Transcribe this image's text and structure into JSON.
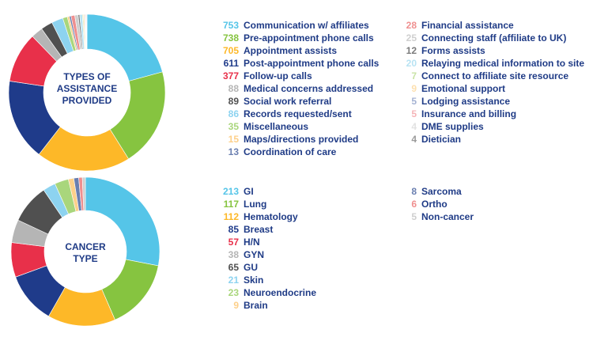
{
  "chart_data": [
    {
      "type": "pie",
      "title": "TYPES OF ASSISTANCE PROVIDED",
      "title_lines": [
        "TYPES OF",
        "ASSISTANCE",
        "PROVIDED"
      ],
      "categories": [
        "Communication w/ affiliates",
        "Pre-appointment phone calls",
        "Appointment assists",
        "Post-appointment phone calls",
        "Follow-up calls",
        "Medical concerns addressed",
        "Social work referral",
        "Records requested/sent",
        "Miscellaneous",
        "Maps/directions provided",
        "Coordination of care",
        "Financial assistance",
        "Connecting staff (affiliate to UK)",
        "Forms assists",
        "Relaying medical information to site",
        "Connect to affiliate site resource",
        "Emotional support",
        "Lodging assistance",
        "Insurance and billing",
        "DME supplies",
        "Dietician"
      ],
      "values": [
        753,
        738,
        705,
        611,
        377,
        88,
        89,
        86,
        35,
        15,
        13,
        28,
        25,
        12,
        20,
        7,
        9,
        5,
        5,
        4,
        4
      ],
      "colors": [
        "#55c5e8",
        "#86c440",
        "#fdb828",
        "#1f3b8a",
        "#e8304a",
        "#b5b5b5",
        "#505050",
        "#8dd3f0",
        "#a9d67c",
        "#fdd08a",
        "#6a7fb0",
        "#ef8f8f",
        "#cfcfcf",
        "#7b7b7b",
        "#b8e3f3",
        "#c8e3a6",
        "#fde0b0",
        "#a5b3d3",
        "#f5b5b8",
        "#e2e2e2",
        "#9a9a9a"
      ]
    },
    {
      "type": "pie",
      "title": "CANCER TYPE",
      "title_lines": [
        "CANCER",
        "TYPE"
      ],
      "categories": [
        "GI",
        "Lung",
        "Hematology",
        "Breast",
        "H/N",
        "GYN",
        "GU",
        "Skin",
        "Neuroendocrine",
        "Brain",
        "Sarcoma",
        "Ortho",
        "Non-cancer"
      ],
      "values": [
        213,
        117,
        112,
        85,
        57,
        38,
        65,
        21,
        23,
        9,
        8,
        6,
        5
      ],
      "colors": [
        "#55c5e8",
        "#86c440",
        "#fdb828",
        "#1f3b8a",
        "#e8304a",
        "#b5b5b5",
        "#505050",
        "#8dd3f0",
        "#a9d67c",
        "#fdd08a",
        "#6a7fb0",
        "#ef8f8f",
        "#cfcfcf"
      ]
    }
  ]
}
